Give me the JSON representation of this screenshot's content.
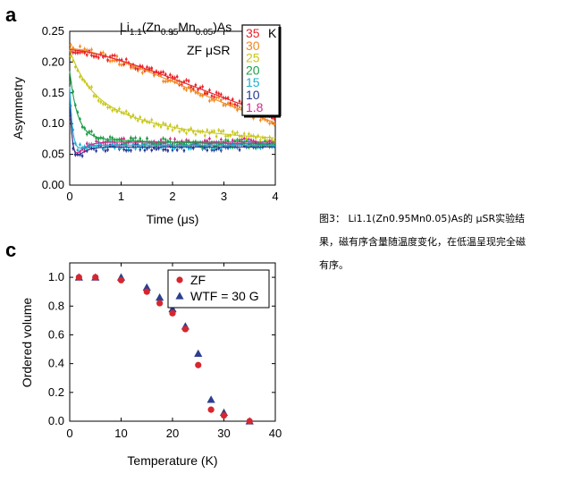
{
  "caption": "图3： Li1.1(Zn0.95Mn0.05)As的 μSR实验结果，磁有序含量随温度变化，在低温呈现完全磁有序。",
  "chart_data": [
    {
      "panel": "a",
      "type": "scatter",
      "title_main": "Li",
      "title_sub1": "1.1",
      "title_mid": "(Zn",
      "title_sub2": "0.95",
      "title_mid2": "Mn",
      "title_sub3": "0.05",
      "title_end": ")As",
      "annotation": "ZF μSR",
      "xlabel": "Time (μs)",
      "ylabel": "Asymmetry",
      "xlim": [
        0,
        4
      ],
      "ylim": [
        0,
        0.25
      ],
      "xticks": [
        "0",
        "1",
        "2",
        "3",
        "4"
      ],
      "yticks": [
        "0.00",
        "0.05",
        "0.10",
        "0.15",
        "0.20",
        "0.25"
      ],
      "legend_unit": "K",
      "legend_position": "top-right",
      "series": [
        {
          "name": "35",
          "color": "#e8232d",
          "a0": 0.22,
          "kind": "slow",
          "tau": 5.2,
          "ainf": 0.0
        },
        {
          "name": "30",
          "color": "#f08a24",
          "a0": 0.222,
          "kind": "slow",
          "tau": 4.7,
          "ainf": 0.0
        },
        {
          "name": "25",
          "color": "#c8c81e",
          "a0": 0.22,
          "kind": "fast",
          "frac": 0.3,
          "tfast": 0.35,
          "ainf": 0.07,
          "tslow": 1.6
        },
        {
          "name": "20",
          "color": "#1f9e48",
          "a0": 0.185,
          "kind": "fast",
          "frac": 0.58,
          "tfast": 0.15,
          "ainf": 0.065,
          "tslow": 2.0
        },
        {
          "name": "15",
          "color": "#1aaed0",
          "a0": 0.16,
          "kind": "fast",
          "frac": 0.82,
          "tfast": 0.06,
          "ainf": 0.065,
          "tslow": 3.5
        },
        {
          "name": "10",
          "color": "#26358f",
          "a0": 0.15,
          "kind": "fast",
          "frac": 0.95,
          "tfast": 0.05,
          "ainf": 0.062,
          "tslow": 3.0
        },
        {
          "name": "1.8",
          "color": "#d12b8a",
          "a0": 0.15,
          "kind": "fast",
          "frac": 0.98,
          "tfast": 0.05,
          "ainf": 0.07,
          "tslow": 9.0
        }
      ]
    },
    {
      "panel": "c",
      "type": "scatter",
      "xlabel": "Temperature (K)",
      "ylabel": "Ordered volume",
      "xlim": [
        0,
        40
      ],
      "ylim": [
        0,
        1.1
      ],
      "xticks": [
        "0",
        "10",
        "20",
        "30",
        "40"
      ],
      "yticks": [
        "0.0",
        "0.2",
        "0.4",
        "0.6",
        "0.8",
        "1.0"
      ],
      "legend_position": "top-right",
      "series": [
        {
          "name": "ZF",
          "color": "#d7262e",
          "marker": "circle",
          "x": [
            1.8,
            5,
            10,
            15,
            17.5,
            20,
            22.5,
            25,
            27.5,
            30,
            35
          ],
          "y": [
            1.0,
            1.0,
            0.98,
            0.9,
            0.82,
            0.75,
            0.64,
            0.39,
            0.08,
            0.04,
            0.0
          ]
        },
        {
          "name": "WTF = 30 G",
          "color": "#2c3f8f",
          "marker": "triangle",
          "x": [
            1.8,
            5,
            10,
            15,
            17.5,
            20,
            22.5,
            25,
            27.5,
            30,
            35
          ],
          "y": [
            1.0,
            1.0,
            1.0,
            0.93,
            0.86,
            0.78,
            0.66,
            0.47,
            0.15,
            0.06,
            0.0
          ]
        }
      ]
    }
  ]
}
